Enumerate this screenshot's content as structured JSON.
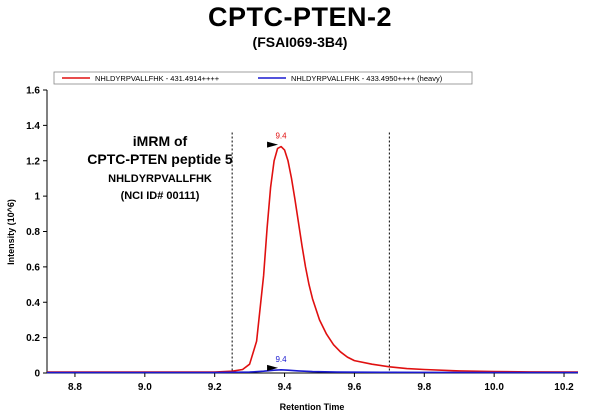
{
  "title": "CPTC-PTEN-2",
  "subtitle": "(FSAI069-3B4)",
  "annotation": {
    "line1": "iMRM of",
    "line2": "CPTC-PTEN peptide 5",
    "line3": "NHLDYRPVALLFHK",
    "line4": "(NCI ID# 00111)"
  },
  "colors": {
    "red": "#e01010",
    "blue": "#1a1ad0"
  },
  "chart_data": {
    "type": "line",
    "xlabel": "Retention Time",
    "ylabel": "Intensity (10^6)",
    "xlim": [
      8.72,
      10.24
    ],
    "ylim": [
      0,
      1.6
    ],
    "xticks": [
      "8.8",
      "9.0",
      "9.2",
      "9.4",
      "9.6",
      "9.8",
      "10.0",
      "10.2"
    ],
    "yticks": [
      "0",
      "0.2",
      "0.4",
      "0.6",
      "0.8",
      "1",
      "1.2",
      "1.4",
      "1.6"
    ],
    "legend_position": "top",
    "integration_bounds": [
      9.25,
      9.7
    ],
    "series": [
      {
        "name": "NHLDYRPVALLFHK - 431.4914++++",
        "color": "#e01010",
        "peak_label": "9.4",
        "peak": [
          9.39,
          1.28
        ],
        "x": [
          8.72,
          9.0,
          9.2,
          9.25,
          9.28,
          9.3,
          9.32,
          9.34,
          9.35,
          9.36,
          9.37,
          9.38,
          9.39,
          9.4,
          9.41,
          9.42,
          9.43,
          9.44,
          9.45,
          9.46,
          9.47,
          9.48,
          9.5,
          9.52,
          9.54,
          9.56,
          9.58,
          9.6,
          9.65,
          9.7,
          9.75,
          9.8,
          9.9,
          10.0,
          10.1,
          10.24
        ],
        "y": [
          0.005,
          0.005,
          0.005,
          0.01,
          0.02,
          0.05,
          0.18,
          0.55,
          0.82,
          1.05,
          1.2,
          1.27,
          1.28,
          1.26,
          1.2,
          1.1,
          0.98,
          0.85,
          0.72,
          0.6,
          0.5,
          0.42,
          0.3,
          0.22,
          0.16,
          0.12,
          0.09,
          0.07,
          0.05,
          0.035,
          0.025,
          0.02,
          0.012,
          0.008,
          0.006,
          0.005
        ]
      },
      {
        "name": "NHLDYRPVALLFHK - 433.4950++++ (heavy)",
        "color": "#1a1ad0",
        "peak_label": "9.4",
        "peak": [
          9.39,
          0.018
        ],
        "x": [
          8.72,
          9.2,
          9.3,
          9.34,
          9.37,
          9.39,
          9.41,
          9.44,
          9.48,
          9.55,
          9.7,
          10.0,
          10.24
        ],
        "y": [
          0.003,
          0.003,
          0.005,
          0.01,
          0.016,
          0.018,
          0.016,
          0.012,
          0.008,
          0.005,
          0.004,
          0.003,
          0.003
        ]
      }
    ]
  }
}
